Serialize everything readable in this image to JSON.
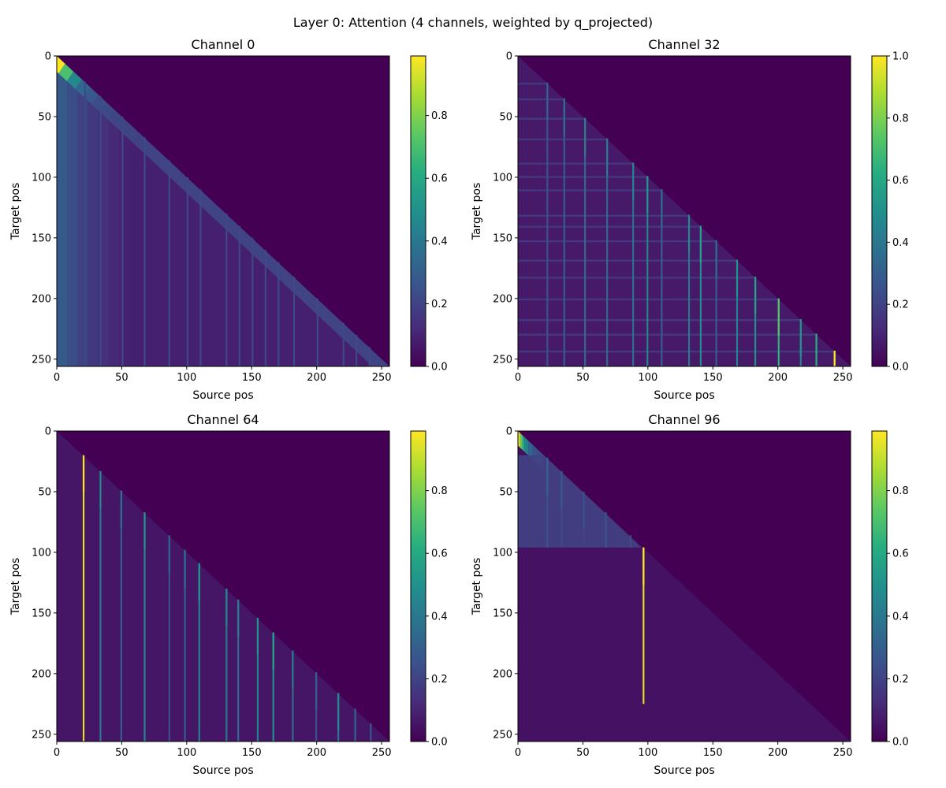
{
  "figure": {
    "suptitle": "Layer 0: Attention (4 channels, weighted by q_projected)"
  },
  "colors": {
    "viridis_stops": [
      "#440154",
      "#472c7a",
      "#3b518b",
      "#2c718e",
      "#21908d",
      "#27ad81",
      "#5cc863",
      "#aadc32",
      "#fde725"
    ],
    "background": "#440154"
  },
  "chart_data": [
    {
      "type": "heatmap",
      "title": "Channel 0",
      "xlabel": "Source pos",
      "ylabel": "Target pos",
      "xlim": [
        0,
        256
      ],
      "ylim": [
        256,
        0
      ],
      "xticks": [
        0,
        50,
        100,
        150,
        200,
        250
      ],
      "yticks": [
        0,
        50,
        100,
        150,
        200,
        250
      ],
      "mask": "lower-triangular",
      "base_pattern": "diagonal-decay-wide",
      "stripe_cols": [
        21,
        33,
        50,
        67,
        86,
        100,
        110,
        130,
        140,
        150,
        160,
        170,
        182,
        200,
        220,
        230,
        240
      ],
      "stripe_value": 0.22,
      "colorbar": {
        "vmin": 0,
        "vmax": 0.99,
        "ticks": [
          0.0,
          0.2,
          0.4,
          0.6,
          0.8
        ],
        "tick_labels": [
          "0.0",
          "0.2",
          "0.4",
          "0.6",
          "0.8"
        ]
      }
    },
    {
      "type": "heatmap",
      "title": "Channel 32",
      "xlabel": "Source pos",
      "ylabel": "Target pos",
      "xlim": [
        0,
        256
      ],
      "ylim": [
        256,
        0
      ],
      "xticks": [
        0,
        50,
        100,
        150,
        200,
        250
      ],
      "yticks": [
        0,
        50,
        100,
        150,
        200,
        250
      ],
      "mask": "lower-triangular",
      "base_pattern": "grid",
      "stripe_cols": [
        22,
        35,
        51,
        68,
        88,
        99,
        110,
        131,
        140,
        152,
        168,
        182,
        200,
        217,
        229,
        243
      ],
      "stripe_values": [
        0.25,
        0.3,
        0.35,
        0.35,
        0.38,
        0.45,
        0.3,
        0.4,
        0.5,
        0.3,
        0.45,
        0.5,
        0.65,
        0.45,
        0.55,
        1.0
      ],
      "colorbar": {
        "vmin": 0,
        "vmax": 1.0,
        "ticks": [
          0.0,
          0.2,
          0.4,
          0.6,
          0.8,
          1.0
        ],
        "tick_labels": [
          "0.0",
          "0.2",
          "0.4",
          "0.6",
          "0.8",
          "1.0"
        ]
      }
    },
    {
      "type": "heatmap",
      "title": "Channel 64",
      "xlabel": "Source pos",
      "ylabel": "Target pos",
      "xlim": [
        0,
        256
      ],
      "ylim": [
        256,
        0
      ],
      "xticks": [
        0,
        50,
        100,
        150,
        200,
        250
      ],
      "yticks": [
        0,
        50,
        100,
        150,
        200,
        250
      ],
      "mask": "lower-triangular",
      "base_pattern": "sparse",
      "stripe_cols": [
        20,
        33,
        49,
        67,
        86,
        98,
        109,
        130,
        139,
        154,
        166,
        181,
        199,
        216,
        229,
        241
      ],
      "stripe_values": [
        0.95,
        0.4,
        0.3,
        0.45,
        0.25,
        0.3,
        0.45,
        0.4,
        0.35,
        0.45,
        0.5,
        0.35,
        0.25,
        0.4,
        0.25,
        0.2
      ],
      "colorbar": {
        "vmin": 0,
        "vmax": 0.99,
        "ticks": [
          0.0,
          0.2,
          0.4,
          0.6,
          0.8
        ],
        "tick_labels": [
          "0.0",
          "0.2",
          "0.4",
          "0.6",
          "0.8"
        ]
      }
    },
    {
      "type": "heatmap",
      "title": "Channel 96",
      "xlabel": "Source pos",
      "ylabel": "Target pos",
      "xlim": [
        0,
        256
      ],
      "ylim": [
        256,
        0
      ],
      "xticks": [
        0,
        50,
        100,
        150,
        200,
        250
      ],
      "yticks": [
        0,
        50,
        100,
        150,
        200,
        250
      ],
      "mask": "lower-triangular",
      "base_pattern": "early-only",
      "stripe_cols": [
        22,
        33,
        50,
        67,
        86,
        96
      ],
      "stripe_values": [
        0.25,
        0.22,
        0.2,
        0.2,
        0.18,
        0.95
      ],
      "colorbar": {
        "vmin": 0,
        "vmax": 0.99,
        "ticks": [
          0.0,
          0.2,
          0.4,
          0.6,
          0.8
        ],
        "tick_labels": [
          "0.0",
          "0.2",
          "0.4",
          "0.6",
          "0.8"
        ]
      }
    }
  ]
}
